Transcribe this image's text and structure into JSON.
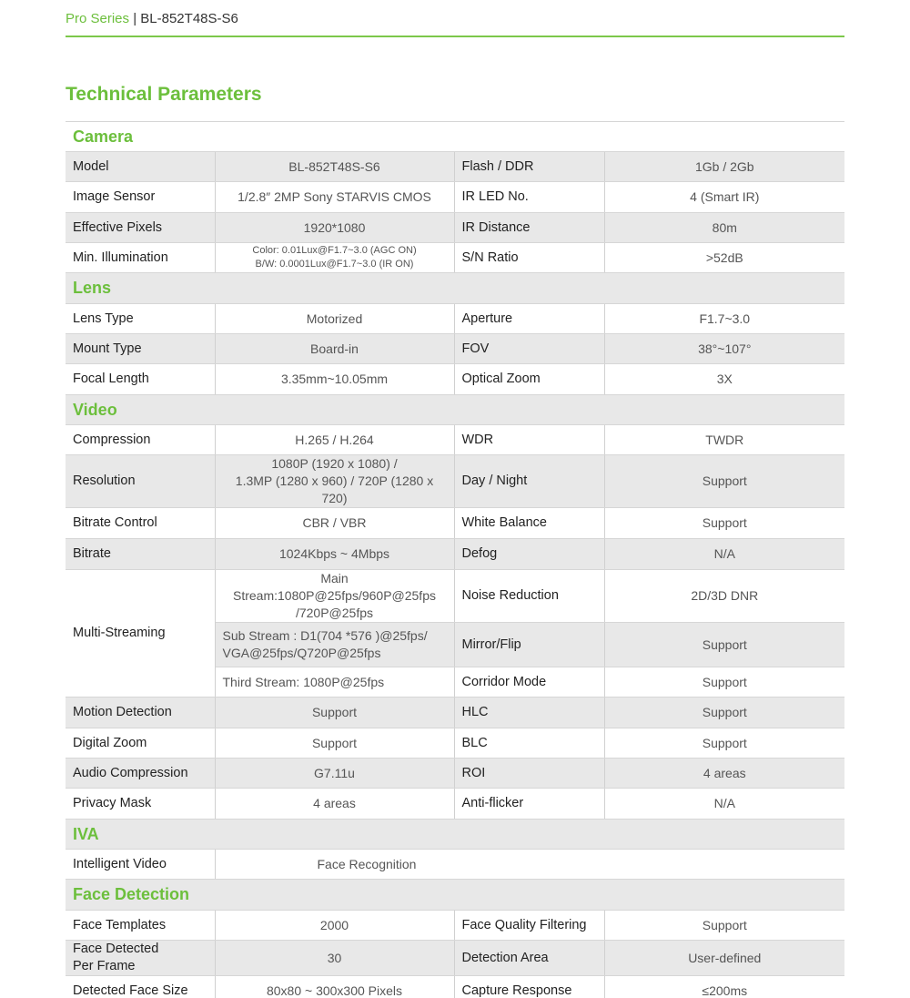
{
  "header": {
    "series": "Pro Series",
    "separator": "|",
    "model": "BL-852T48S-S6"
  },
  "title": "Technical Parameters",
  "sections": [
    {
      "name": "Camera",
      "rows": [
        [
          "Model",
          "BL-852T48S-S6",
          "Flash / DDR",
          "1Gb / 2Gb"
        ],
        [
          "Image Sensor",
          "1/2.8″ 2MP Sony STARVIS CMOS",
          "IR LED No.",
          "4 (Smart IR)"
        ],
        [
          "Effective Pixels",
          "1920*1080",
          "IR Distance",
          "80m"
        ],
        [
          "Min. Illumination",
          "Color: 0.01Lux@F1.7~3.0 (AGC ON)\nB/W: 0.0001Lux@F1.7~3.0 (IR ON)",
          "S/N Ratio",
          ">52dB"
        ]
      ]
    },
    {
      "name": "Lens",
      "rows": [
        [
          "Lens Type",
          "Motorized",
          "Aperture",
          "F1.7~3.0"
        ],
        [
          "Mount Type",
          "Board-in",
          "FOV",
          "38°~107°"
        ],
        [
          "Focal Length",
          "3.35mm~10.05mm",
          "Optical Zoom",
          "3X"
        ]
      ]
    },
    {
      "name": "Video",
      "rows": [
        [
          "Compression",
          "H.265 / H.264",
          "WDR",
          "TWDR"
        ],
        [
          "Resolution",
          "1080P (1920 x 1080) /\n1.3MP (1280 x 960) / 720P (1280 x 720)",
          "Day / Night",
          "Support"
        ],
        [
          "Bitrate Control",
          "CBR / VBR",
          "White Balance",
          "Support"
        ],
        [
          "Bitrate",
          "1024Kbps ~ 4Mbps",
          "Defog",
          "N/A"
        ],
        [
          "Multi-Streaming",
          "Main Stream:1080P@25fps/960P@25fps\n/720P@25fps",
          "Noise Reduction",
          "2D/3D DNR"
        ],
        [
          "",
          "Sub Stream : D1(704 *576 )@25fps/\nVGA@25fps/Q720P@25fps",
          "Mirror/Flip",
          "Support"
        ],
        [
          "",
          "Third Stream: 1080P@25fps",
          "Corridor Mode",
          "Support"
        ],
        [
          "Motion Detection",
          "Support",
          "HLC",
          "Support"
        ],
        [
          "Digital Zoom",
          "Support",
          "BLC",
          "Support"
        ],
        [
          "Audio Compression",
          "G7.11u",
          "ROI",
          "4 areas"
        ],
        [
          "Privacy Mask",
          "4 areas",
          "Anti-flicker",
          "N/A"
        ]
      ]
    },
    {
      "name": "IVA",
      "rows": [
        [
          "Intelligent Video",
          "Face Recognition"
        ]
      ]
    },
    {
      "name": "Face Detection",
      "rows": [
        [
          "Face Templates",
          "2000",
          "Face Quality Filtering",
          "Support"
        ],
        [
          "Face Detected\nPer Frame",
          "30",
          "Detection Area",
          "User-defined"
        ],
        [
          "Detected Face Size",
          "80x80 ~ 300x300 Pixels",
          "Capture Response",
          "≤200ms"
        ]
      ]
    }
  ]
}
